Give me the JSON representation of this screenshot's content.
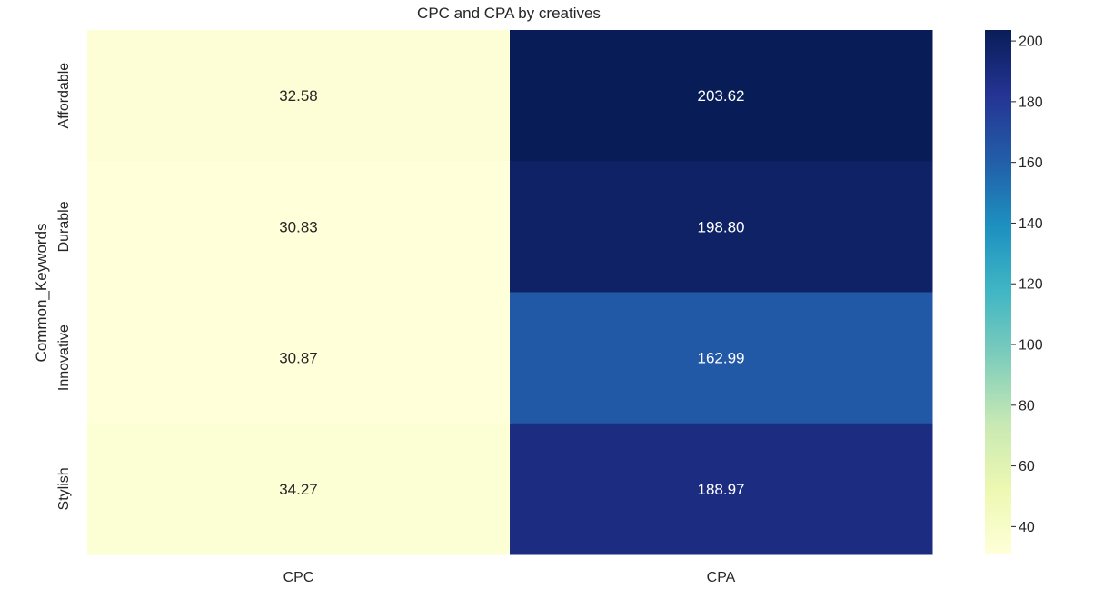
{
  "chart_data": {
    "type": "heatmap",
    "title": "CPC and CPA by creatives",
    "xlabel": "",
    "ylabel": "Common_Keywords",
    "columns": [
      "CPC",
      "CPA"
    ],
    "rows": [
      "Affordable",
      "Durable",
      "Innovative",
      "Stylish"
    ],
    "values": [
      [
        32.58,
        203.62
      ],
      [
        30.83,
        198.8
      ],
      [
        30.87,
        162.99
      ],
      [
        34.27,
        188.97
      ]
    ],
    "cell_labels": [
      [
        "32.58",
        "203.62"
      ],
      [
        "30.83",
        "198.80"
      ],
      [
        "30.87",
        "162.99"
      ],
      [
        "34.27",
        "188.97"
      ]
    ],
    "colormap": "YlGnBu",
    "vmin": 30.83,
    "vmax": 203.62,
    "colorbar": {
      "ticks": [
        40,
        60,
        80,
        100,
        120,
        140,
        160,
        180,
        200
      ],
      "tick_labels": [
        "40",
        "60",
        "80",
        "100",
        "120",
        "140",
        "160",
        "180",
        "200"
      ],
      "placement": "right"
    },
    "grid": false
  },
  "colors": {
    "text": "#262626",
    "annotation_dark": "#262626",
    "annotation_light": "#ffffff",
    "colormap_stops": [
      "#ffffd9",
      "#edf8b1",
      "#c7e9b4",
      "#7fcdbb",
      "#41b6c4",
      "#1d91c0",
      "#225ea8",
      "#253494",
      "#081d58"
    ]
  }
}
